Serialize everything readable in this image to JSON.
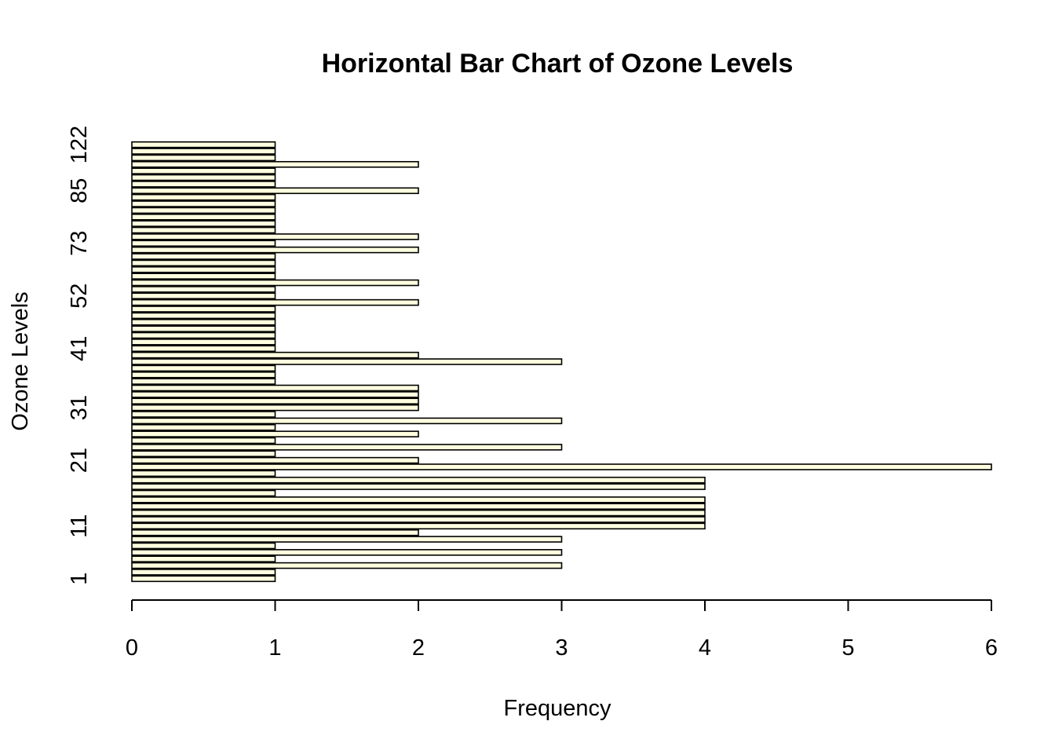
{
  "chart_data": {
    "type": "bar",
    "orientation": "horizontal",
    "title": "Horizontal Bar Chart of Ozone Levels",
    "xlabel": "Frequency",
    "ylabel": "Ozone Levels",
    "xlim": [
      0,
      6
    ],
    "x_ticks": [
      0,
      1,
      2,
      3,
      4,
      5,
      6
    ],
    "y_tick_labels": [
      {
        "index": 0,
        "label": "1"
      },
      {
        "index": 8,
        "label": "11"
      },
      {
        "index": 18,
        "label": "21"
      },
      {
        "index": 26,
        "label": "31"
      },
      {
        "index": 35,
        "label": "41"
      },
      {
        "index": 43,
        "label": "52"
      },
      {
        "index": 51,
        "label": "73"
      },
      {
        "index": 59,
        "label": "85"
      },
      {
        "index": 66,
        "label": "122"
      }
    ],
    "values": [
      1,
      1,
      3,
      1,
      3,
      1,
      3,
      2,
      4,
      4,
      4,
      4,
      4,
      1,
      4,
      4,
      1,
      6,
      2,
      1,
      3,
      1,
      2,
      1,
      3,
      1,
      2,
      2,
      2,
      2,
      1,
      1,
      1,
      3,
      2,
      1,
      1,
      1,
      1,
      1,
      1,
      1,
      2,
      1,
      1,
      2,
      1,
      1,
      1,
      1,
      2,
      1,
      2,
      1,
      1,
      1,
      1,
      1,
      1,
      2,
      1,
      1,
      1,
      2,
      1,
      1,
      1
    ],
    "grid": false,
    "legend": "none",
    "colors": {
      "bar_fill": "#FFFFE0",
      "bar_stroke": "#000000"
    }
  }
}
